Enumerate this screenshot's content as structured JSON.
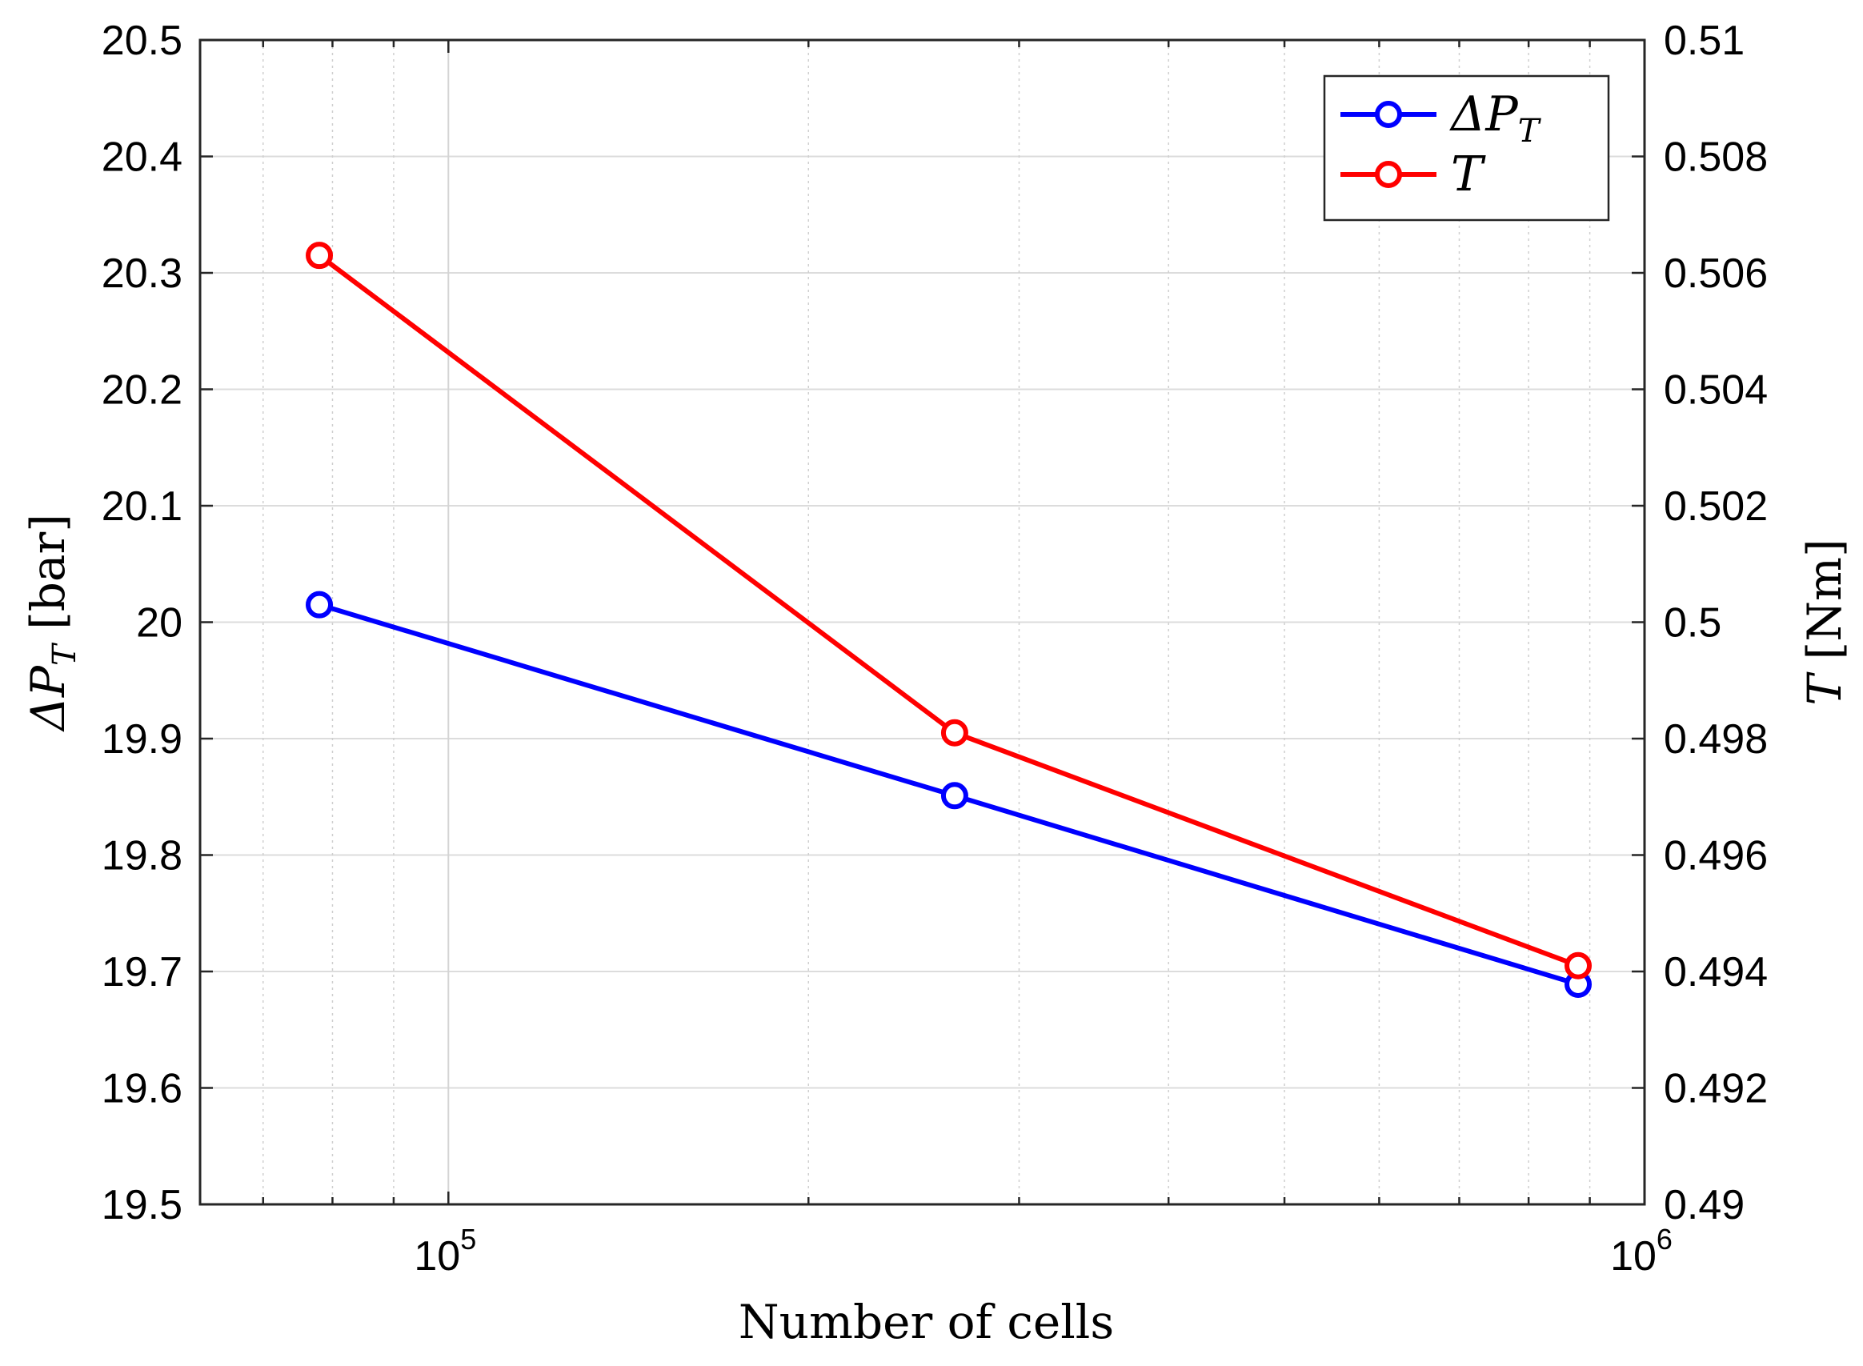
{
  "chart_data": {
    "type": "line",
    "title": "",
    "xlabel": "Number of cells",
    "x_scale": "log",
    "xlim": [
      62000,
      1000000
    ],
    "x_ticks": [
      {
        "value": 100000,
        "base": "10",
        "exp": "5"
      },
      {
        "value": 1000000,
        "base": "10",
        "exp": "6"
      }
    ],
    "grid": true,
    "y_left": {
      "label_symbol": "ΔP",
      "label_subscript": "T",
      "label_unit": "[bar]",
      "ylim": [
        19.5,
        20.5
      ],
      "ticks": [
        "19.5",
        "19.6",
        "19.7",
        "19.8",
        "19.9",
        "20",
        "20.1",
        "20.2",
        "20.3",
        "20.4",
        "20.5"
      ]
    },
    "y_right": {
      "label_symbol": "T",
      "label_unit": "[Nm]",
      "ylim": [
        0.49,
        0.51
      ],
      "ticks": [
        "0.49",
        "0.492",
        "0.494",
        "0.496",
        "0.498",
        "0.5",
        "0.502",
        "0.504",
        "0.506",
        "0.508",
        "0.51"
      ]
    },
    "series": [
      {
        "name": "ΔP_T",
        "legend_symbol": "ΔP",
        "legend_subscript": "T",
        "axis": "left",
        "color": "#0000ff",
        "x": [
          78000,
          265000,
          880000
        ],
        "values": [
          20.015,
          19.851,
          19.689
        ]
      },
      {
        "name": "T",
        "legend_symbol": "T",
        "legend_subscript": "",
        "axis": "right",
        "color": "#ff0000",
        "x": [
          78000,
          265000,
          880000
        ],
        "values": [
          0.5063,
          0.4981,
          0.4941
        ]
      }
    ],
    "legend_position": "top-right"
  }
}
